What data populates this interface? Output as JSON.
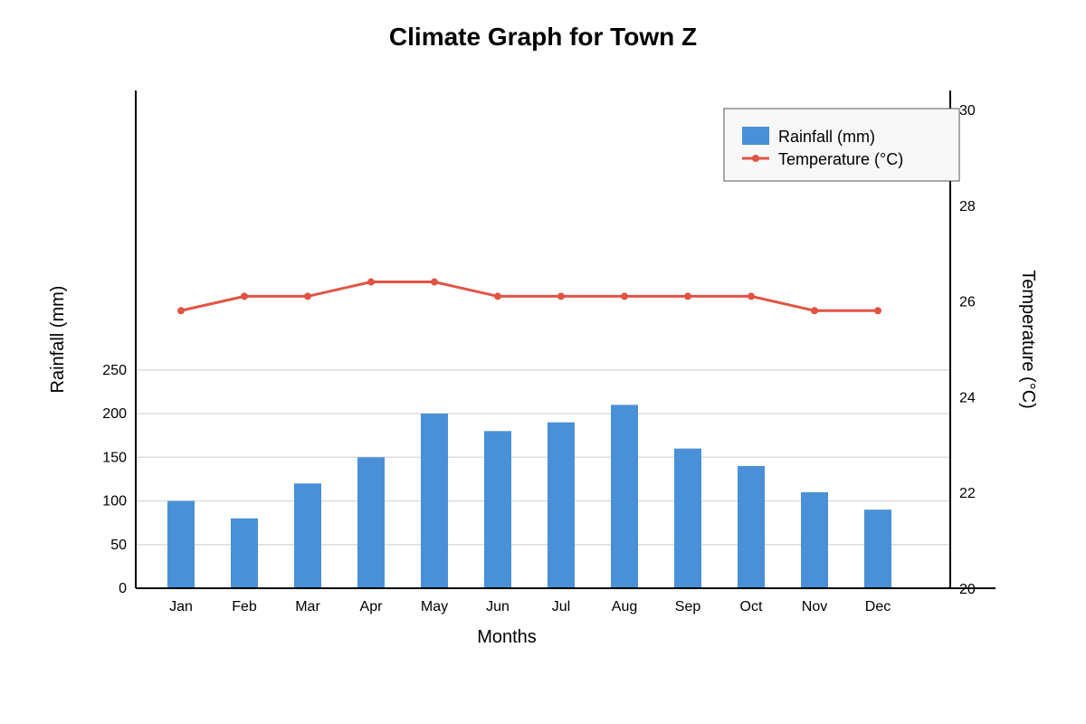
{
  "chart_data": {
    "type": "bar",
    "title": "Climate Graph for Town Z",
    "xlabel": "Months",
    "ylabel": "Rainfall (mm)",
    "y2label": "Temperature (°C)",
    "categories": [
      "Jan",
      "Feb",
      "Mar",
      "Apr",
      "May",
      "Jun",
      "Jul",
      "Aug",
      "Sep",
      "Oct",
      "Nov",
      "Dec"
    ],
    "series": [
      {
        "name": "Rainfall (mm)",
        "type": "bar",
        "axis": "left",
        "color": "#4a90d9",
        "values": [
          100,
          80,
          120,
          150,
          200,
          180,
          190,
          210,
          160,
          140,
          110,
          90
        ]
      },
      {
        "name": "Temperature (°C)",
        "type": "line",
        "axis": "right",
        "color": "#e05444",
        "values": [
          25.8,
          26.1,
          26.1,
          26.4,
          26.4,
          26.1,
          26.1,
          26.1,
          26.1,
          26.1,
          25.8,
          25.8
        ]
      }
    ],
    "ylim": [
      0,
      570
    ],
    "yticks": [
      0,
      50,
      100,
      150,
      200,
      250
    ],
    "y2lim": [
      20,
      30.4
    ],
    "y2ticks": [
      20,
      22,
      24,
      26,
      28,
      30
    ],
    "grid": true,
    "legend_position": "top-right"
  }
}
